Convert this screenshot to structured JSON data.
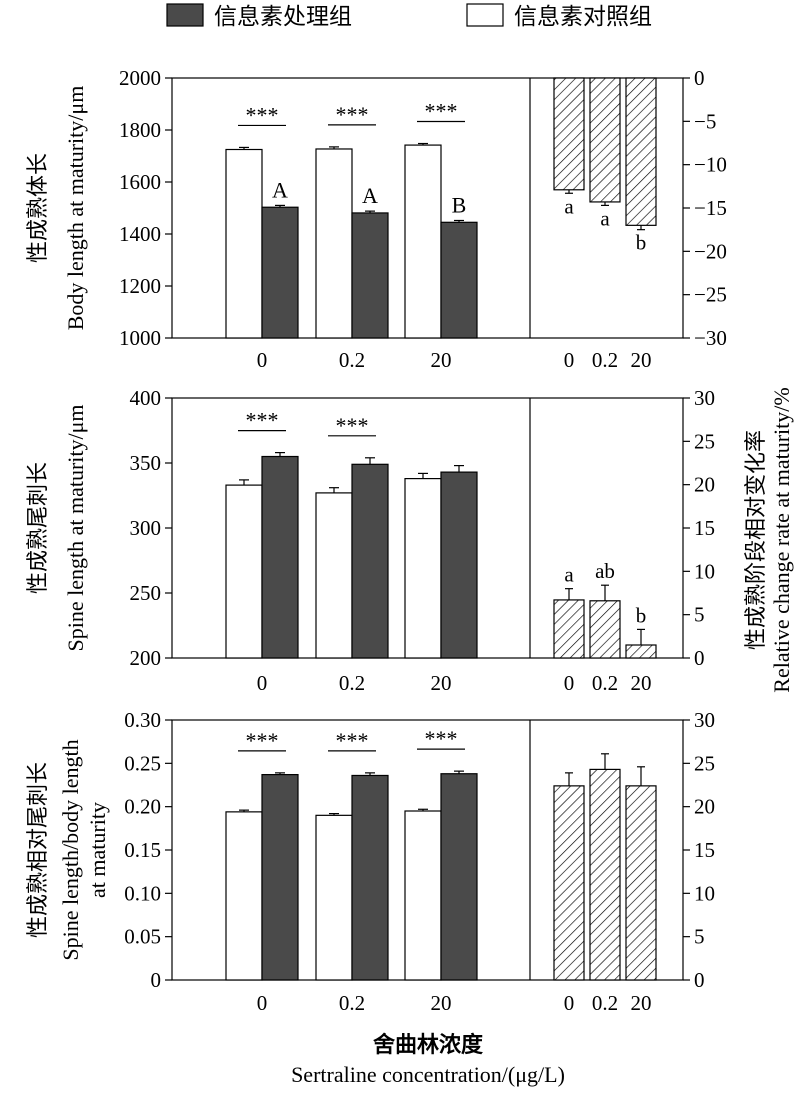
{
  "legend": {
    "treatment": "信息素处理组",
    "control": "信息素对照组"
  },
  "x_label": {
    "cn": "舍曲林浓度",
    "en": "Sertraline concentration/(μg/L)"
  },
  "right_axis_label": {
    "cn": "性成熟阶段相对变化率",
    "en": "Relative change rate at maturity/%"
  },
  "colors": {
    "treatment_fill": "#4a4a4a",
    "control_fill": "#ffffff",
    "outline": "#000000"
  },
  "significance_marker": "***",
  "chart_data": [
    {
      "type": "bar",
      "panel": "body-length",
      "ylabel_cn": "性成熟体长",
      "ylabel_en": "Body length at maturity/μm",
      "categories": [
        "0",
        "0.2",
        "20"
      ],
      "ylim": [
        1000,
        2000
      ],
      "yticks": [
        "1000",
        "1200",
        "1400",
        "1600",
        "1800",
        "2000"
      ],
      "series": [
        {
          "name": "信息素对照组",
          "values": [
            1725,
            1727,
            1742
          ],
          "errors": [
            8,
            8,
            6
          ]
        },
        {
          "name": "信息素处理组",
          "values": [
            1503,
            1481,
            1445
          ],
          "errors": [
            7,
            7,
            7
          ]
        }
      ],
      "treatment_labels": [
        "A",
        "A",
        "B"
      ],
      "significance": [
        "***",
        "***",
        "***"
      ],
      "change_rate": {
        "type": "bar",
        "ylim": [
          -30,
          0
        ],
        "yticks": [
          "0",
          "−5",
          "−10",
          "−15",
          "−20",
          "−25",
          "−30"
        ],
        "values": [
          -12.9,
          -14.3,
          -17.0
        ],
        "errors": [
          0.4,
          0.4,
          0.5
        ],
        "labels": [
          "a",
          "a",
          "b"
        ]
      }
    },
    {
      "type": "bar",
      "panel": "spine-length",
      "ylabel_cn": "性成熟尾刺长",
      "ylabel_en": "Spine length at maturity/μm",
      "categories": [
        "0",
        "0.2",
        "20"
      ],
      "ylim": [
        200,
        400
      ],
      "yticks": [
        "200",
        "250",
        "300",
        "350",
        "400"
      ],
      "series": [
        {
          "name": "信息素对照组",
          "values": [
            333,
            327,
            338
          ],
          "errors": [
            4,
            4,
            4
          ]
        },
        {
          "name": "信息素处理组",
          "values": [
            355,
            349,
            343
          ],
          "errors": [
            3,
            5,
            5
          ]
        }
      ],
      "treatment_labels": [
        "",
        "",
        ""
      ],
      "significance": [
        "***",
        "***",
        ""
      ],
      "change_rate": {
        "type": "bar",
        "ylim": [
          0,
          30
        ],
        "yticks": [
          "0",
          "5",
          "10",
          "15",
          "20",
          "25",
          "30"
        ],
        "values": [
          6.7,
          6.6,
          1.5
        ],
        "errors": [
          1.3,
          1.8,
          1.8
        ],
        "labels": [
          "a",
          "ab",
          "b"
        ]
      }
    },
    {
      "type": "bar",
      "panel": "spine-body-ratio",
      "ylabel_cn": "性成熟相对尾刺长",
      "ylabel_en_line1": "Spine length/body length",
      "ylabel_en_line2": "at maturity",
      "categories": [
        "0",
        "0.2",
        "20"
      ],
      "ylim": [
        0,
        0.3
      ],
      "yticks": [
        "0",
        "0.05",
        "0.10",
        "0.15",
        "0.20",
        "0.25",
        "0.30"
      ],
      "series": [
        {
          "name": "信息素对照组",
          "values": [
            0.194,
            0.19,
            0.195
          ],
          "errors": [
            0.002,
            0.002,
            0.002
          ]
        },
        {
          "name": "信息素处理组",
          "values": [
            0.237,
            0.236,
            0.238
          ],
          "errors": [
            0.002,
            0.003,
            0.003
          ]
        }
      ],
      "treatment_labels": [
        "",
        "",
        ""
      ],
      "significance": [
        "***",
        "***",
        "***"
      ],
      "change_rate": {
        "type": "bar",
        "ylim": [
          0,
          30
        ],
        "yticks": [
          "0",
          "5",
          "10",
          "15",
          "20",
          "25",
          "30"
        ],
        "values": [
          22.4,
          24.3,
          22.4
        ],
        "errors": [
          1.5,
          1.8,
          2.2
        ],
        "labels": [
          "",
          "",
          ""
        ]
      }
    }
  ]
}
